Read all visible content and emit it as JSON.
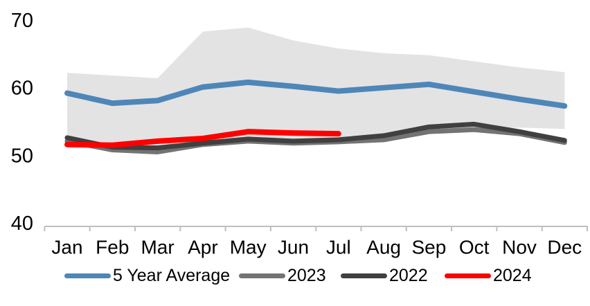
{
  "chart_data": {
    "type": "line",
    "title": "",
    "xlabel": "",
    "ylabel": "",
    "categories": [
      "Jan",
      "Feb",
      "Mar",
      "Apr",
      "May",
      "Jun",
      "Jul",
      "Aug",
      "Sep",
      "Oct",
      "Nov",
      "Dec"
    ],
    "y_ticks": [
      40,
      50,
      60,
      70
    ],
    "ylim": [
      40,
      70
    ],
    "grid": false,
    "legend_position": "bottom",
    "axis_color": "#bfbfbf",
    "text_color": "#000000",
    "band": {
      "name": "5-year-range-band",
      "color": "#e3e3e3",
      "top": [
        62.3,
        61.9,
        61.5,
        68.4,
        69.0,
        67.1,
        65.9,
        65.2,
        64.9,
        64.0,
        63.1,
        62.4
      ],
      "bottom": [
        52.9,
        51.0,
        50.5,
        51.4,
        51.9,
        51.7,
        51.8,
        52.5,
        53.6,
        54.0,
        54.2,
        54.0
      ]
    },
    "series": [
      {
        "name": "5 Year Average",
        "color": "#4e86b8",
        "values": [
          59.3,
          57.8,
          58.2,
          60.2,
          60.9,
          60.3,
          59.6,
          60.1,
          60.6,
          59.5,
          58.4,
          57.4
        ]
      },
      {
        "name": "2023",
        "color": "#737373",
        "values": [
          52.2,
          50.9,
          50.6,
          51.7,
          52.2,
          51.9,
          52.1,
          52.4,
          53.6,
          53.9,
          53.3,
          52.0
        ]
      },
      {
        "name": "2022",
        "color": "#404040",
        "values": [
          52.7,
          51.3,
          51.2,
          51.9,
          52.5,
          52.2,
          52.4,
          53.0,
          54.3,
          54.7,
          53.6,
          52.3
        ]
      },
      {
        "name": "2024",
        "color": "#ff0000",
        "values": [
          51.7,
          51.6,
          52.2,
          52.6,
          53.6,
          53.4,
          53.3,
          null,
          null,
          null,
          null,
          null
        ]
      }
    ]
  }
}
